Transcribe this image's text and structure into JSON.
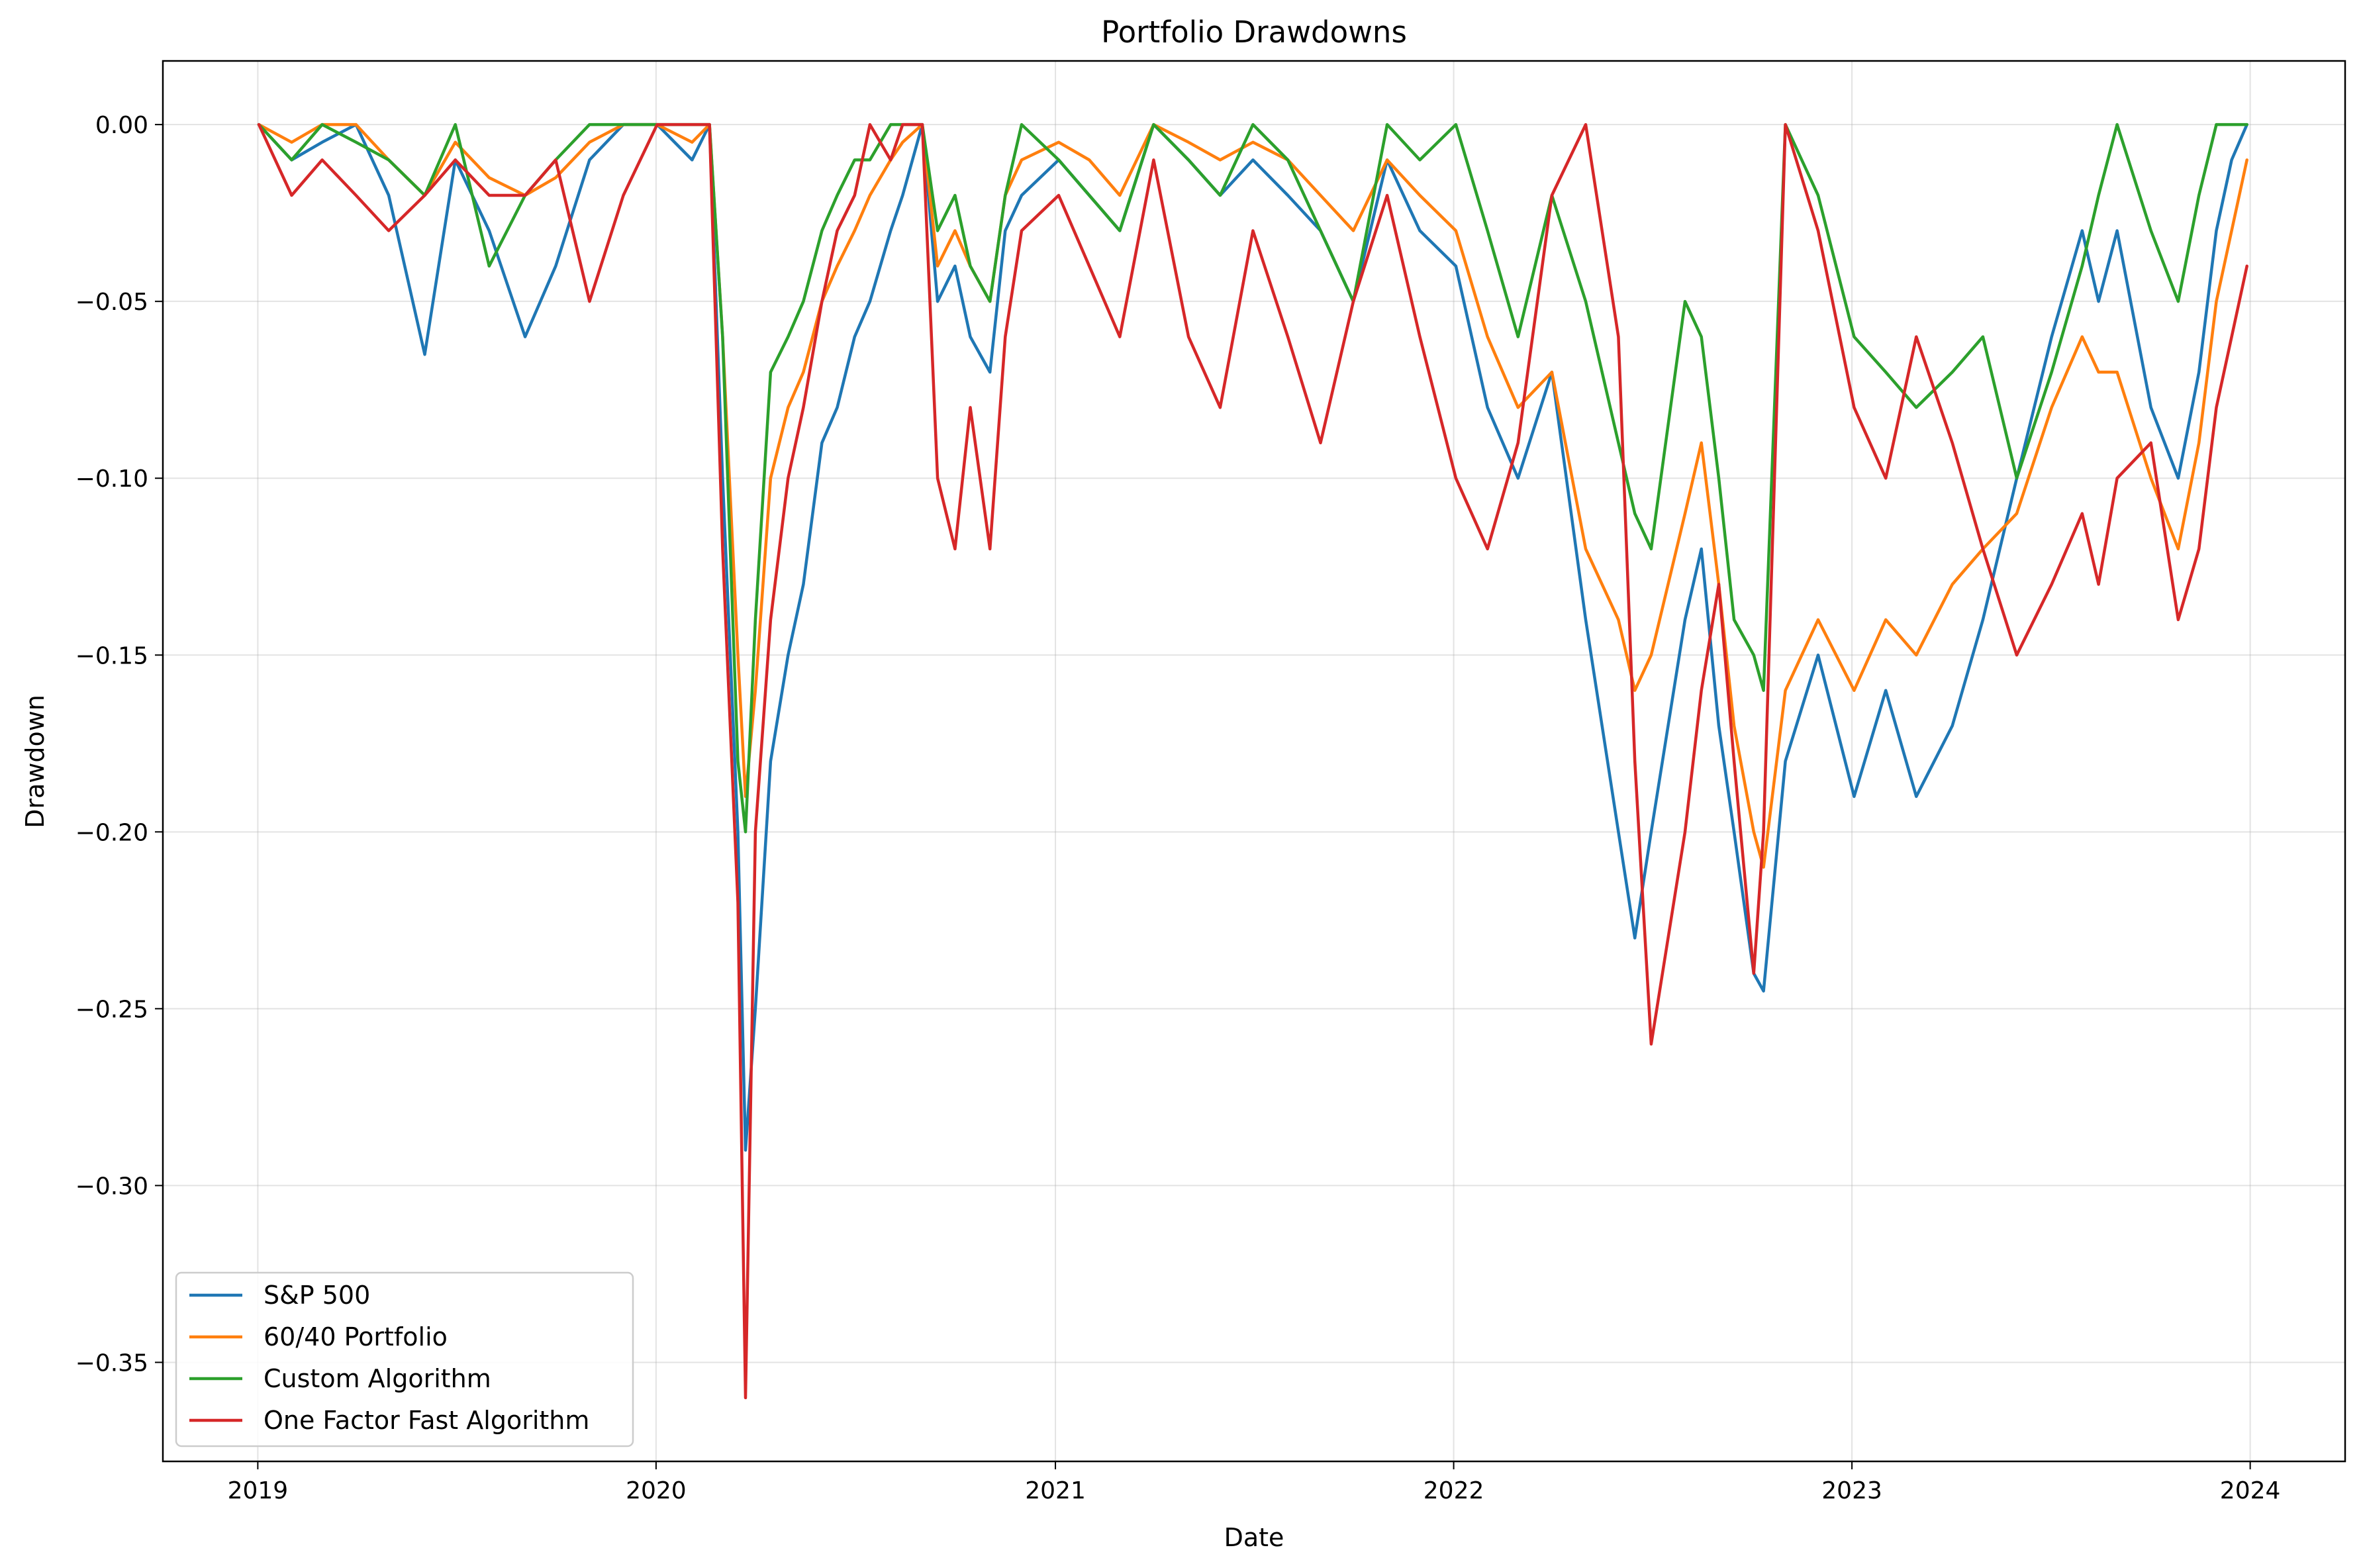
{
  "chart_data": {
    "type": "line",
    "title": "Portfolio Drawdowns",
    "xlabel": "Date",
    "ylabel": "Drawdown",
    "xlim": [
      "2018-10-06",
      "2024-03-28"
    ],
    "ylim": [
      -0.378,
      0.018
    ],
    "x_ticks": [
      "2019",
      "2020",
      "2021",
      "2022",
      "2023",
      "2024"
    ],
    "y_ticks": [
      "0.00",
      "−0.05",
      "−0.10",
      "−0.15",
      "−0.20",
      "−0.25",
      "−0.30",
      "−0.35"
    ],
    "grid": true,
    "legend_position": "lower-left",
    "series": [
      {
        "name": "S&P 500",
        "color": "#1f77b4",
        "x": [
          "2019-01-02",
          "2019-02-01",
          "2019-03-01",
          "2019-04-01",
          "2019-05-01",
          "2019-06-03",
          "2019-07-01",
          "2019-08-01",
          "2019-09-03",
          "2019-10-01",
          "2019-11-01",
          "2019-12-02",
          "2020-01-02",
          "2020-02-03",
          "2020-02-19",
          "2020-03-02",
          "2020-03-16",
          "2020-03-23",
          "2020-04-01",
          "2020-04-15",
          "2020-05-01",
          "2020-05-15",
          "2020-06-01",
          "2020-06-15",
          "2020-07-01",
          "2020-07-15",
          "2020-08-03",
          "2020-08-14",
          "2020-09-01",
          "2020-09-15",
          "2020-10-01",
          "2020-10-15",
          "2020-11-02",
          "2020-11-16",
          "2020-12-01",
          "2021-01-04",
          "2021-02-01",
          "2021-03-01",
          "2021-04-01",
          "2021-05-03",
          "2021-06-01",
          "2021-07-01",
          "2021-08-02",
          "2021-09-01",
          "2021-10-01",
          "2021-11-01",
          "2021-12-01",
          "2022-01-03",
          "2022-02-01",
          "2022-03-01",
          "2022-04-01",
          "2022-05-02",
          "2022-06-01",
          "2022-06-16",
          "2022-07-01",
          "2022-08-01",
          "2022-08-16",
          "2022-09-01",
          "2022-09-15",
          "2022-10-03",
          "2022-10-12",
          "2022-11-01",
          "2022-12-01",
          "2023-01-03",
          "2023-02-01",
          "2023-03-01",
          "2023-04-03",
          "2023-05-01",
          "2023-06-01",
          "2023-07-03",
          "2023-07-31",
          "2023-08-15",
          "2023-09-01",
          "2023-10-02",
          "2023-10-27",
          "2023-11-15",
          "2023-12-01",
          "2023-12-15",
          "2023-12-29"
        ],
        "y": [
          0.0,
          -0.01,
          -0.005,
          0.0,
          -0.02,
          -0.065,
          -0.01,
          -0.03,
          -0.06,
          -0.04,
          -0.01,
          0.0,
          0.0,
          -0.01,
          0.0,
          -0.1,
          -0.2,
          -0.29,
          -0.25,
          -0.18,
          -0.15,
          -0.13,
          -0.09,
          -0.08,
          -0.06,
          -0.05,
          -0.03,
          -0.02,
          0.0,
          -0.05,
          -0.04,
          -0.06,
          -0.07,
          -0.03,
          -0.02,
          -0.01,
          -0.02,
          -0.03,
          0.0,
          -0.01,
          -0.02,
          -0.01,
          -0.02,
          -0.03,
          -0.05,
          -0.01,
          -0.03,
          -0.04,
          -0.08,
          -0.1,
          -0.07,
          -0.14,
          -0.2,
          -0.23,
          -0.2,
          -0.14,
          -0.12,
          -0.17,
          -0.2,
          -0.24,
          -0.245,
          -0.18,
          -0.15,
          -0.19,
          -0.16,
          -0.19,
          -0.17,
          -0.14,
          -0.1,
          -0.06,
          -0.03,
          -0.05,
          -0.03,
          -0.08,
          -0.1,
          -0.07,
          -0.03,
          -0.01,
          0.0
        ]
      },
      {
        "name": "60/40 Portfolio",
        "color": "#ff7f0e",
        "x": [
          "2019-01-02",
          "2019-02-01",
          "2019-03-01",
          "2019-04-01",
          "2019-05-01",
          "2019-06-03",
          "2019-07-01",
          "2019-08-01",
          "2019-09-03",
          "2019-10-01",
          "2019-11-01",
          "2019-12-02",
          "2020-01-02",
          "2020-02-03",
          "2020-02-19",
          "2020-03-02",
          "2020-03-16",
          "2020-03-23",
          "2020-04-01",
          "2020-04-15",
          "2020-05-01",
          "2020-05-15",
          "2020-06-01",
          "2020-06-15",
          "2020-07-01",
          "2020-07-15",
          "2020-08-03",
          "2020-08-14",
          "2020-09-01",
          "2020-09-15",
          "2020-10-01",
          "2020-10-15",
          "2020-11-02",
          "2020-11-16",
          "2020-12-01",
          "2021-01-04",
          "2021-02-01",
          "2021-03-01",
          "2021-04-01",
          "2021-05-03",
          "2021-06-01",
          "2021-07-01",
          "2021-08-02",
          "2021-09-01",
          "2021-10-01",
          "2021-11-01",
          "2021-12-01",
          "2022-01-03",
          "2022-02-01",
          "2022-03-01",
          "2022-04-01",
          "2022-05-02",
          "2022-06-01",
          "2022-06-16",
          "2022-07-01",
          "2022-08-01",
          "2022-08-16",
          "2022-09-01",
          "2022-09-15",
          "2022-10-03",
          "2022-10-12",
          "2022-11-01",
          "2022-12-01",
          "2023-01-03",
          "2023-02-01",
          "2023-03-01",
          "2023-04-03",
          "2023-05-01",
          "2023-06-01",
          "2023-07-03",
          "2023-07-31",
          "2023-08-15",
          "2023-09-01",
          "2023-10-02",
          "2023-10-27",
          "2023-11-15",
          "2023-12-01",
          "2023-12-15",
          "2023-12-29"
        ],
        "y": [
          0.0,
          -0.005,
          0.0,
          0.0,
          -0.01,
          -0.02,
          -0.005,
          -0.015,
          -0.02,
          -0.015,
          -0.005,
          0.0,
          0.0,
          -0.005,
          0.0,
          -0.06,
          -0.15,
          -0.19,
          -0.16,
          -0.1,
          -0.08,
          -0.07,
          -0.05,
          -0.04,
          -0.03,
          -0.02,
          -0.01,
          -0.005,
          0.0,
          -0.04,
          -0.03,
          -0.04,
          -0.05,
          -0.02,
          -0.01,
          -0.005,
          -0.01,
          -0.02,
          0.0,
          -0.005,
          -0.01,
          -0.005,
          -0.01,
          -0.02,
          -0.03,
          -0.01,
          -0.02,
          -0.03,
          -0.06,
          -0.08,
          -0.07,
          -0.12,
          -0.14,
          -0.16,
          -0.15,
          -0.11,
          -0.09,
          -0.13,
          -0.17,
          -0.2,
          -0.21,
          -0.16,
          -0.14,
          -0.16,
          -0.14,
          -0.15,
          -0.13,
          -0.12,
          -0.11,
          -0.08,
          -0.06,
          -0.07,
          -0.07,
          -0.1,
          -0.12,
          -0.09,
          -0.05,
          -0.03,
          -0.01
        ]
      },
      {
        "name": "Custom Algorithm",
        "color": "#2ca02c",
        "x": [
          "2019-01-02",
          "2019-02-01",
          "2019-03-01",
          "2019-04-01",
          "2019-05-01",
          "2019-06-03",
          "2019-07-01",
          "2019-08-01",
          "2019-09-03",
          "2019-10-01",
          "2019-11-01",
          "2019-12-02",
          "2020-01-02",
          "2020-02-03",
          "2020-02-19",
          "2020-03-02",
          "2020-03-16",
          "2020-03-23",
          "2020-04-01",
          "2020-04-15",
          "2020-05-01",
          "2020-05-15",
          "2020-06-01",
          "2020-06-15",
          "2020-07-01",
          "2020-07-15",
          "2020-08-03",
          "2020-08-14",
          "2020-09-01",
          "2020-09-15",
          "2020-10-01",
          "2020-10-15",
          "2020-11-02",
          "2020-11-16",
          "2020-12-01",
          "2021-01-04",
          "2021-02-01",
          "2021-03-01",
          "2021-04-01",
          "2021-05-03",
          "2021-06-01",
          "2021-07-01",
          "2021-08-02",
          "2021-09-01",
          "2021-10-01",
          "2021-11-01",
          "2021-12-01",
          "2022-01-03",
          "2022-02-01",
          "2022-03-01",
          "2022-04-01",
          "2022-05-02",
          "2022-06-01",
          "2022-06-16",
          "2022-07-01",
          "2022-08-01",
          "2022-08-16",
          "2022-09-01",
          "2022-09-15",
          "2022-10-03",
          "2022-10-12",
          "2022-11-01",
          "2022-12-01",
          "2023-01-03",
          "2023-02-01",
          "2023-03-01",
          "2023-04-03",
          "2023-05-01",
          "2023-06-01",
          "2023-07-03",
          "2023-07-31",
          "2023-08-15",
          "2023-09-01",
          "2023-10-02",
          "2023-10-27",
          "2023-11-15",
          "2023-12-01",
          "2023-12-15",
          "2023-12-29"
        ],
        "y": [
          0.0,
          -0.01,
          0.0,
          -0.005,
          -0.01,
          -0.02,
          0.0,
          -0.04,
          -0.02,
          -0.01,
          0.0,
          0.0,
          0.0,
          0.0,
          0.0,
          -0.06,
          -0.18,
          -0.2,
          -0.14,
          -0.07,
          -0.06,
          -0.05,
          -0.03,
          -0.02,
          -0.01,
          -0.01,
          0.0,
          0.0,
          0.0,
          -0.03,
          -0.02,
          -0.04,
          -0.05,
          -0.02,
          0.0,
          -0.01,
          -0.02,
          -0.03,
          0.0,
          -0.01,
          -0.02,
          0.0,
          -0.01,
          -0.03,
          -0.05,
          0.0,
          -0.01,
          0.0,
          -0.03,
          -0.06,
          -0.02,
          -0.05,
          -0.09,
          -0.11,
          -0.12,
          -0.05,
          -0.06,
          -0.1,
          -0.14,
          -0.15,
          -0.16,
          0.0,
          -0.02,
          -0.06,
          -0.07,
          -0.08,
          -0.07,
          -0.06,
          -0.1,
          -0.07,
          -0.04,
          -0.02,
          0.0,
          -0.03,
          -0.05,
          -0.02,
          0.0,
          0.0,
          0.0
        ]
      },
      {
        "name": "One Factor Fast Algorithm",
        "color": "#d62728",
        "x": [
          "2019-01-02",
          "2019-02-01",
          "2019-03-01",
          "2019-04-01",
          "2019-05-01",
          "2019-06-03",
          "2019-07-01",
          "2019-08-01",
          "2019-09-03",
          "2019-10-01",
          "2019-11-01",
          "2019-12-02",
          "2020-01-02",
          "2020-02-03",
          "2020-02-19",
          "2020-03-02",
          "2020-03-16",
          "2020-03-23",
          "2020-04-01",
          "2020-04-15",
          "2020-05-01",
          "2020-05-15",
          "2020-06-01",
          "2020-06-15",
          "2020-07-01",
          "2020-07-15",
          "2020-08-03",
          "2020-08-14",
          "2020-09-01",
          "2020-09-15",
          "2020-10-01",
          "2020-10-15",
          "2020-11-02",
          "2020-11-16",
          "2020-12-01",
          "2021-01-04",
          "2021-02-01",
          "2021-03-01",
          "2021-04-01",
          "2021-05-03",
          "2021-06-01",
          "2021-07-01",
          "2021-08-02",
          "2021-09-01",
          "2021-10-01",
          "2021-11-01",
          "2021-12-01",
          "2022-01-03",
          "2022-02-01",
          "2022-03-01",
          "2022-04-01",
          "2022-05-02",
          "2022-06-01",
          "2022-06-16",
          "2022-07-01",
          "2022-08-01",
          "2022-08-16",
          "2022-09-01",
          "2022-09-15",
          "2022-10-03",
          "2022-10-12",
          "2022-11-01",
          "2022-12-01",
          "2023-01-03",
          "2023-02-01",
          "2023-03-01",
          "2023-04-03",
          "2023-05-01",
          "2023-06-01",
          "2023-07-03",
          "2023-07-31",
          "2023-08-15",
          "2023-09-01",
          "2023-10-02",
          "2023-10-27",
          "2023-11-15",
          "2023-12-01",
          "2023-12-15",
          "2023-12-29"
        ],
        "y": [
          0.0,
          -0.02,
          -0.01,
          -0.02,
          -0.03,
          -0.02,
          -0.01,
          -0.02,
          -0.02,
          -0.01,
          -0.05,
          -0.02,
          0.0,
          0.0,
          0.0,
          -0.12,
          -0.22,
          -0.36,
          -0.2,
          -0.14,
          -0.1,
          -0.08,
          -0.05,
          -0.03,
          -0.02,
          0.0,
          -0.01,
          0.0,
          0.0,
          -0.1,
          -0.12,
          -0.08,
          -0.12,
          -0.06,
          -0.03,
          -0.02,
          -0.04,
          -0.06,
          -0.01,
          -0.06,
          -0.08,
          -0.03,
          -0.06,
          -0.09,
          -0.05,
          -0.02,
          -0.06,
          -0.1,
          -0.12,
          -0.09,
          -0.02,
          0.0,
          -0.06,
          -0.18,
          -0.26,
          -0.2,
          -0.16,
          -0.13,
          -0.18,
          -0.24,
          -0.2,
          0.0,
          -0.03,
          -0.08,
          -0.1,
          -0.06,
          -0.09,
          -0.12,
          -0.15,
          -0.13,
          -0.11,
          -0.13,
          -0.1,
          -0.09,
          -0.14,
          -0.12,
          -0.08,
          -0.06,
          -0.04
        ]
      }
    ]
  }
}
